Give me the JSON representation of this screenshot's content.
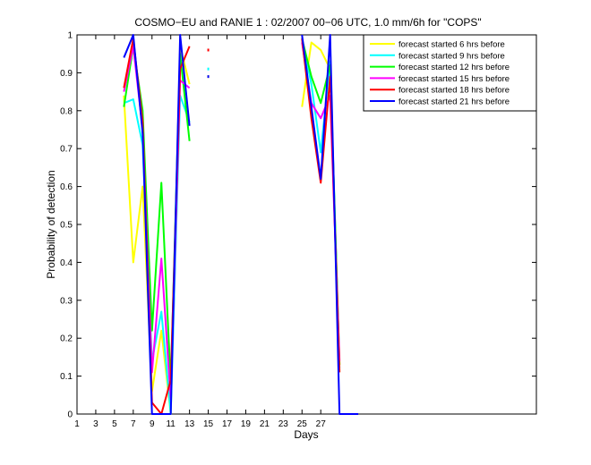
{
  "chart_data": {
    "type": "line",
    "title": "COSMO−EU and RANIE 1 : 02/2007 00−06 UTC, 1.0 mm/6h for \"COPS\"",
    "xlabel": "Days",
    "ylabel": "Probability of detection",
    "xlim": [
      1,
      50
    ],
    "ylim": [
      0,
      1
    ],
    "xticks": [
      1,
      3,
      5,
      7,
      9,
      11,
      13,
      15,
      17,
      19,
      21,
      23,
      25,
      27
    ],
    "yticks": [
      0,
      0.1,
      0.2,
      0.3,
      0.4,
      0.5,
      0.6,
      0.7,
      0.8,
      0.9,
      1
    ],
    "ytick_labels": [
      "0",
      "0.1",
      "0.2",
      "0.3",
      "0.4",
      "0.5",
      "0.6",
      "0.7",
      "0.8",
      "0.9",
      "1"
    ],
    "grid": false,
    "legend_position": "top-right",
    "series": [
      {
        "name": "forecast started 6 hrs before",
        "color": "#ffff00",
        "segments": [
          [
            [
              6,
              0.84
            ],
            [
              7,
              0.4
            ],
            [
              8,
              0.6
            ],
            [
              9,
              0.06
            ],
            [
              10,
              0.22
            ],
            [
              11,
              0.0
            ],
            [
              12,
              0.97
            ],
            [
              13,
              0.87
            ]
          ],
          [
            [
              15,
              0.89
            ]
          ],
          [
            [
              25,
              0.81
            ],
            [
              26,
              0.98
            ],
            [
              27,
              0.96
            ],
            [
              28,
              0.91
            ],
            [
              29,
              0.13
            ]
          ]
        ]
      },
      {
        "name": "forecast started 9 hrs before",
        "color": "#00ffff",
        "segments": [
          [
            [
              6,
              0.82
            ],
            [
              7,
              0.83
            ],
            [
              8,
              0.71
            ],
            [
              9,
              0.14
            ],
            [
              10,
              0.27
            ],
            [
              11,
              0.0
            ],
            [
              12,
              0.84
            ],
            [
              13,
              0.77
            ]
          ],
          [
            [
              15,
              0.91
            ]
          ],
          [
            [
              25,
              0.99
            ],
            [
              26,
              0.87
            ],
            [
              27,
              0.69
            ],
            [
              28,
              0.93
            ],
            [
              29,
              0.12
            ]
          ]
        ]
      },
      {
        "name": "forecast started 12 hrs before",
        "color": "#00ff00",
        "segments": [
          [
            [
              6,
              0.81
            ],
            [
              7,
              0.97
            ],
            [
              8,
              0.8
            ],
            [
              9,
              0.22
            ],
            [
              10,
              0.61
            ],
            [
              11,
              0.08
            ],
            [
              12,
              0.95
            ],
            [
              13,
              0.72
            ]
          ],
          [
            [
              25,
              0.99
            ],
            [
              26,
              0.89
            ],
            [
              27,
              0.82
            ],
            [
              28,
              0.92
            ],
            [
              29,
              0.13
            ]
          ]
        ]
      },
      {
        "name": "forecast started 15 hrs before",
        "color": "#ff00ff",
        "segments": [
          [
            [
              6,
              0.85
            ],
            [
              7,
              0.97
            ],
            [
              8,
              0.75
            ],
            [
              9,
              0.11
            ],
            [
              10,
              0.41
            ],
            [
              11,
              0.04
            ],
            [
              12,
              0.88
            ],
            [
              13,
              0.86
            ]
          ],
          [
            [
              25,
              0.98
            ],
            [
              26,
              0.82
            ],
            [
              27,
              0.78
            ],
            [
              28,
              0.84
            ],
            [
              29,
              0.14
            ]
          ]
        ]
      },
      {
        "name": "forecast started 18 hrs before",
        "color": "#ff0000",
        "segments": [
          [
            [
              6,
              0.86
            ],
            [
              7,
              0.99
            ],
            [
              8,
              0.77
            ],
            [
              9,
              0.03
            ],
            [
              10,
              0.0
            ],
            [
              11,
              0.09
            ],
            [
              12,
              0.91
            ],
            [
              13,
              0.97
            ]
          ],
          [
            [
              15,
              0.96
            ]
          ],
          [
            [
              25,
              0.99
            ],
            [
              26,
              0.78
            ],
            [
              27,
              0.61
            ],
            [
              28,
              0.89
            ],
            [
              29,
              0.11
            ]
          ]
        ]
      },
      {
        "name": "forecast started 21 hrs before",
        "color": "#0000ff",
        "segments": [
          [
            [
              6,
              0.94
            ],
            [
              7,
              1.0
            ],
            [
              8,
              0.74
            ],
            [
              9,
              0.0
            ],
            [
              10,
              0.0
            ],
            [
              11,
              0.0
            ],
            [
              12,
              1.0
            ],
            [
              13,
              0.76
            ]
          ],
          [
            [
              15,
              0.89
            ]
          ],
          [
            [
              25,
              1.0
            ],
            [
              26,
              0.81
            ],
            [
              27,
              0.62
            ],
            [
              28,
              1.0
            ],
            [
              29,
              0.0
            ],
            [
              30,
              0.0
            ],
            [
              31,
              0.0
            ]
          ]
        ]
      }
    ]
  }
}
